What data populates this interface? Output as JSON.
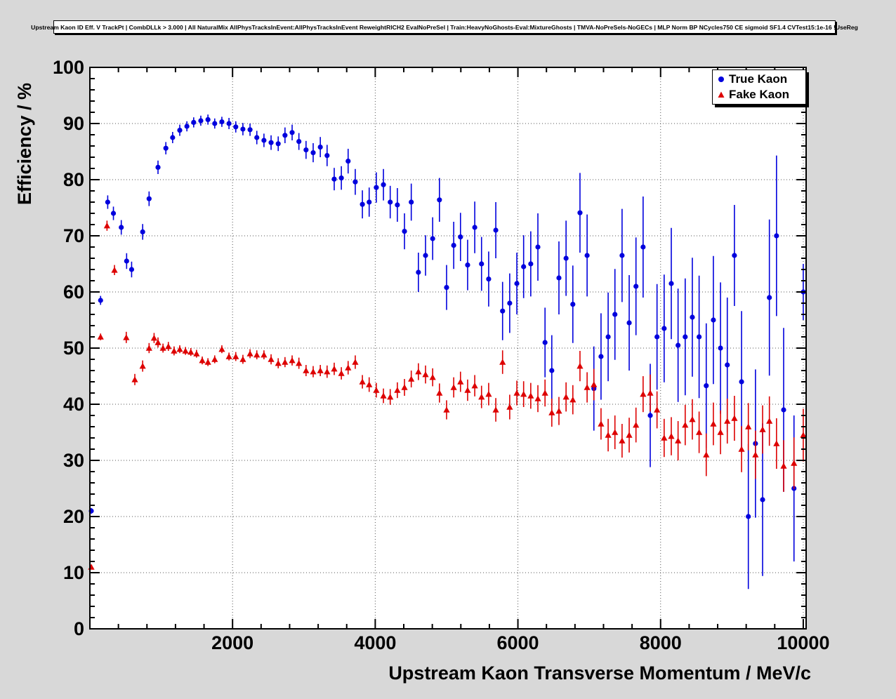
{
  "chart_data": {
    "type": "scatter",
    "title": "Upstream Kaon ID Eff. V TrackPt | CombDLLk > 3.000 | All NaturalMix AllPhysTracksInEvent:AllPhysTracksInEvent ReweightRICH2 EvalNoPreSel | Train:HeavyNoGhosts-Eval:MixtureGhosts | TMVA-NoPreSels-NoGECs | MLP Norm BP NCycles750 CE sigmoid SF1.4 CVTest15:1e-16 !UseReg",
    "xlabel": "Upstream Kaon Transverse Momentum / MeV/c",
    "ylabel": "Efficiency / %",
    "xlim": [
      0,
      10040
    ],
    "ylim": [
      0,
      100
    ],
    "xticks": [
      2000,
      4000,
      6000,
      8000,
      10000
    ],
    "yticks": [
      0,
      10,
      20,
      30,
      40,
      50,
      60,
      70,
      80,
      90,
      100
    ],
    "x_minor_step": 400,
    "y_minor_step": 2,
    "grid": true,
    "grid_color": "#555555",
    "legend_position": "top-right",
    "series": [
      {
        "name": "True Kaon",
        "marker": "circle",
        "color": "#0000dd",
        "x": [
          20,
          150,
          250,
          330,
          440,
          515,
          585,
          740,
          830,
          955,
          1065,
          1160,
          1260,
          1360,
          1455,
          1555,
          1655,
          1750,
          1850,
          1950,
          2045,
          2145,
          2245,
          2340,
          2440,
          2540,
          2640,
          2735,
          2835,
          2930,
          3030,
          3130,
          3230,
          3325,
          3425,
          3525,
          3620,
          3720,
          3820,
          3915,
          4015,
          4115,
          4210,
          4310,
          4410,
          4505,
          4605,
          4705,
          4805,
          4900,
          5000,
          5100,
          5195,
          5295,
          5395,
          5490,
          5590,
          5690,
          5785,
          5885,
          5985,
          6080,
          6180,
          6280,
          6380,
          6475,
          6575,
          6675,
          6770,
          6870,
          6970,
          7065,
          7165,
          7265,
          7360,
          7460,
          7560,
          7655,
          7755,
          7855,
          7950,
          8050,
          8150,
          8245,
          8345,
          8445,
          8540,
          8640,
          8740,
          8840,
          8935,
          9035,
          9135,
          9230,
          9330,
          9430,
          9525,
          9625,
          9725,
          9870,
          10000
        ],
        "y": [
          21.0,
          58.5,
          76.0,
          74.0,
          71.5,
          65.5,
          64.0,
          70.7,
          76.6,
          82.2,
          85.6,
          87.5,
          88.8,
          89.5,
          90.2,
          90.5,
          90.7,
          90.0,
          90.3,
          90.0,
          89.4,
          89.0,
          88.9,
          87.5,
          87.0,
          86.6,
          86.4,
          87.9,
          88.4,
          86.8,
          85.3,
          84.8,
          85.8,
          84.3,
          80.1,
          80.3,
          83.3,
          79.6,
          75.6,
          76.0,
          78.6,
          79.1,
          76.0,
          75.5,
          70.8,
          76.0,
          63.5,
          66.5,
          69.5,
          76.4,
          60.8,
          68.3,
          69.8,
          64.8,
          71.5,
          65.0,
          62.3,
          71.0,
          56.6,
          58.0,
          61.5,
          64.5,
          65.0,
          68.0,
          51.0,
          46.0,
          62.5,
          66.0,
          57.8,
          74.1,
          66.5,
          42.8,
          48.5,
          52.0,
          56.0,
          66.5,
          54.5,
          61.0,
          68.0,
          38.0,
          52.0,
          53.5,
          61.5,
          50.5,
          52.0,
          55.5,
          52.0,
          43.3,
          55.0,
          50.0,
          47.0,
          66.5,
          44.0,
          20.0,
          33.0,
          23.0,
          59.0,
          70.0,
          39.0,
          25.0,
          60.0
        ],
        "yerr": [
          0.5,
          0.8,
          1.2,
          1.2,
          1.3,
          1.4,
          1.4,
          1.4,
          1.3,
          1.2,
          1.1,
          1.0,
          1.0,
          0.9,
          0.9,
          0.9,
          0.9,
          0.9,
          0.9,
          1.0,
          1.0,
          1.1,
          1.1,
          1.2,
          1.2,
          1.3,
          1.3,
          1.4,
          1.4,
          1.5,
          1.6,
          1.7,
          1.8,
          1.9,
          2.0,
          2.1,
          2.2,
          2.3,
          2.5,
          2.6,
          2.7,
          2.8,
          2.9,
          3.0,
          3.2,
          3.3,
          3.5,
          3.6,
          3.8,
          3.9,
          4.0,
          4.2,
          4.3,
          4.5,
          4.6,
          4.8,
          4.9,
          5.0,
          5.2,
          5.3,
          5.5,
          5.6,
          5.8,
          6.0,
          6.2,
          6.3,
          6.5,
          6.7,
          6.9,
          7.1,
          7.3,
          7.5,
          7.7,
          7.9,
          8.1,
          8.3,
          8.5,
          8.7,
          9.0,
          9.2,
          9.4,
          9.6,
          9.9,
          10.1,
          10.4,
          10.6,
          10.9,
          11.1,
          11.4,
          11.7,
          12.0,
          9.0,
          12.6,
          12.9,
          13.2,
          13.6,
          13.9,
          14.3,
          14.6,
          13.0,
          5.0
        ]
      },
      {
        "name": "Fake Kaon",
        "marker": "triangle",
        "color": "#dd0000",
        "x": [
          20,
          150,
          240,
          345,
          510,
          630,
          740,
          830,
          900,
          955,
          1025,
          1100,
          1180,
          1260,
          1340,
          1415,
          1495,
          1575,
          1655,
          1750,
          1850,
          1950,
          2045,
          2145,
          2245,
          2340,
          2440,
          2540,
          2640,
          2735,
          2835,
          2930,
          3030,
          3130,
          3230,
          3325,
          3425,
          3525,
          3620,
          3720,
          3820,
          3915,
          4015,
          4115,
          4210,
          4310,
          4410,
          4505,
          4605,
          4705,
          4805,
          4900,
          5000,
          5100,
          5195,
          5295,
          5395,
          5490,
          5590,
          5690,
          5785,
          5885,
          5985,
          6080,
          6180,
          6280,
          6380,
          6475,
          6575,
          6675,
          6770,
          6870,
          6970,
          7065,
          7165,
          7265,
          7360,
          7460,
          7560,
          7655,
          7755,
          7855,
          7950,
          8050,
          8150,
          8245,
          8345,
          8445,
          8540,
          8640,
          8740,
          8840,
          8935,
          9035,
          9135,
          9230,
          9330,
          9430,
          9525,
          9625,
          9725,
          9870,
          10000
        ],
        "y": [
          11.0,
          52.0,
          71.8,
          63.9,
          51.9,
          44.4,
          46.8,
          50.0,
          51.8,
          51.0,
          50.0,
          50.3,
          49.5,
          49.8,
          49.5,
          49.3,
          49.0,
          47.8,
          47.5,
          48.0,
          49.8,
          48.5,
          48.5,
          48.0,
          49.0,
          48.8,
          48.8,
          48.0,
          47.3,
          47.5,
          47.8,
          47.3,
          46.0,
          45.8,
          46.0,
          45.8,
          46.3,
          45.5,
          46.5,
          47.5,
          44.0,
          43.5,
          42.5,
          41.5,
          41.3,
          42.5,
          43.0,
          44.5,
          45.8,
          45.3,
          44.8,
          42.0,
          39.0,
          43.0,
          44.0,
          42.5,
          43.3,
          41.3,
          41.8,
          39.0,
          47.5,
          39.5,
          42.0,
          41.8,
          41.5,
          41.0,
          42.0,
          38.5,
          38.8,
          41.3,
          40.8,
          46.8,
          43.0,
          43.5,
          36.5,
          34.5,
          35.0,
          33.5,
          34.5,
          36.3,
          41.8,
          42.0,
          39.0,
          34.0,
          34.3,
          33.5,
          36.3,
          37.3,
          35.0,
          31.0,
          36.5,
          35.0,
          37.0,
          37.5,
          32.0,
          36.0,
          31.0,
          35.5,
          37.0,
          33.0,
          29.0,
          29.5,
          34.5
        ],
        "yerr": [
          0.4,
          0.6,
          0.9,
          0.9,
          1.0,
          1.0,
          1.0,
          0.9,
          0.9,
          0.9,
          0.8,
          0.8,
          0.8,
          0.7,
          0.7,
          0.7,
          0.7,
          0.7,
          0.7,
          0.7,
          0.7,
          0.7,
          0.8,
          0.8,
          0.8,
          0.8,
          0.8,
          0.9,
          0.9,
          0.9,
          0.9,
          1.0,
          1.0,
          1.0,
          1.0,
          1.1,
          1.1,
          1.1,
          1.2,
          1.2,
          1.2,
          1.3,
          1.3,
          1.3,
          1.4,
          1.4,
          1.5,
          1.5,
          1.5,
          1.6,
          1.6,
          1.7,
          1.7,
          1.8,
          1.8,
          1.9,
          1.9,
          2.0,
          2.0,
          2.1,
          2.1,
          2.2,
          2.2,
          2.3,
          2.3,
          2.4,
          2.4,
          2.5,
          2.5,
          2.6,
          2.6,
          2.7,
          2.7,
          2.8,
          2.8,
          2.9,
          3.0,
          3.0,
          3.1,
          3.1,
          3.2,
          3.3,
          3.3,
          3.4,
          3.4,
          3.5,
          3.6,
          3.6,
          3.7,
          3.8,
          3.8,
          3.9,
          4.0,
          4.0,
          4.1,
          4.2,
          4.3,
          4.3,
          4.4,
          4.5,
          4.6,
          4.6,
          4.7
        ]
      }
    ]
  }
}
